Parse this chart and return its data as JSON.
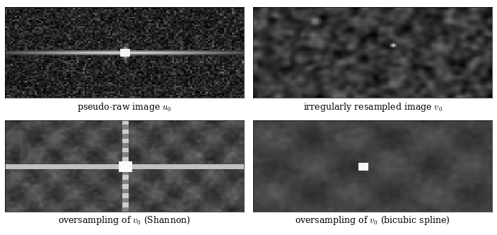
{
  "labels": [
    "pseudo-raw image $u_0$",
    "irregularly resampled image $v_0$",
    "oversampling of $v_0$ (Shannon)",
    "oversampling of $v_0$ (bicubic spline)"
  ],
  "fig_width": 7.03,
  "fig_height": 3.32,
  "dpi": 100,
  "background_color": "#ffffff",
  "label_fontsize": 9,
  "nrows": 2,
  "ncols": 2,
  "img_rows": 60,
  "img_cols": 120,
  "seed": 42
}
